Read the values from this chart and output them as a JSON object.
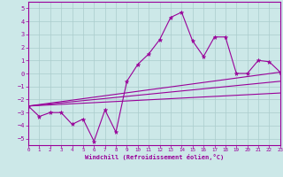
{
  "xlabel": "Windchill (Refroidissement éolien,°C)",
  "xlim": [
    0,
    23
  ],
  "ylim": [
    -5.5,
    5.5
  ],
  "yticks": [
    -5,
    -4,
    -3,
    -2,
    -1,
    0,
    1,
    2,
    3,
    4,
    5
  ],
  "xticks": [
    0,
    1,
    2,
    3,
    4,
    5,
    6,
    7,
    8,
    9,
    10,
    11,
    12,
    13,
    14,
    15,
    16,
    17,
    18,
    19,
    20,
    21,
    22,
    23
  ],
  "bg_color": "#cce8e8",
  "grid_color": "#aacccc",
  "line_color": "#990099",
  "main_x": [
    0,
    1,
    2,
    3,
    4,
    5,
    6,
    7,
    8,
    9,
    10,
    11,
    12,
    13,
    14,
    15,
    16,
    17,
    18,
    19,
    20,
    21,
    22,
    23
  ],
  "main_y": [
    -2.5,
    -3.3,
    -3.0,
    -3.0,
    -3.9,
    -3.5,
    -5.2,
    -2.8,
    -4.5,
    -0.6,
    0.7,
    1.5,
    2.6,
    4.3,
    4.7,
    2.5,
    1.3,
    2.8,
    2.8,
    0.0,
    0.0,
    1.0,
    0.9,
    0.1
  ],
  "upper_line_x": [
    0,
    23
  ],
  "upper_line_y": [
    -2.5,
    0.1
  ],
  "lower_line_x": [
    0,
    23
  ],
  "lower_line_y": [
    -2.5,
    -1.5
  ],
  "mid_line_x": [
    0,
    23
  ],
  "mid_line_y": [
    -2.5,
    -0.6
  ]
}
